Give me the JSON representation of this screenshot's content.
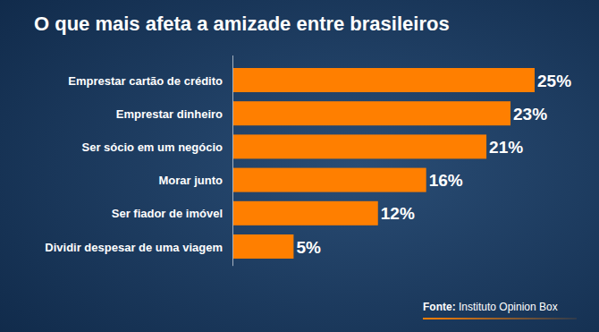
{
  "chart_data": {
    "type": "bar",
    "title": "O que mais afeta a amizade entre brasileiros",
    "categories": [
      "Emprestar cartão de crédito",
      "Emprestar dinheiro",
      "Ser sócio em um negócio",
      "Morar junto",
      "Ser fiador de imóvel",
      "Dividir despesar de uma viagem"
    ],
    "values": [
      25,
      23,
      21,
      16,
      12,
      5
    ],
    "value_labels": [
      "25%",
      "23%",
      "21%",
      "16%",
      "12%",
      "5%"
    ],
    "color": "#ff7f00",
    "orientation": "horizontal",
    "data_labels": true,
    "tick_labels": false,
    "grid": false,
    "xlim": [
      0,
      25
    ],
    "source": "Fonte: Instituto Opinion Box"
  }
}
